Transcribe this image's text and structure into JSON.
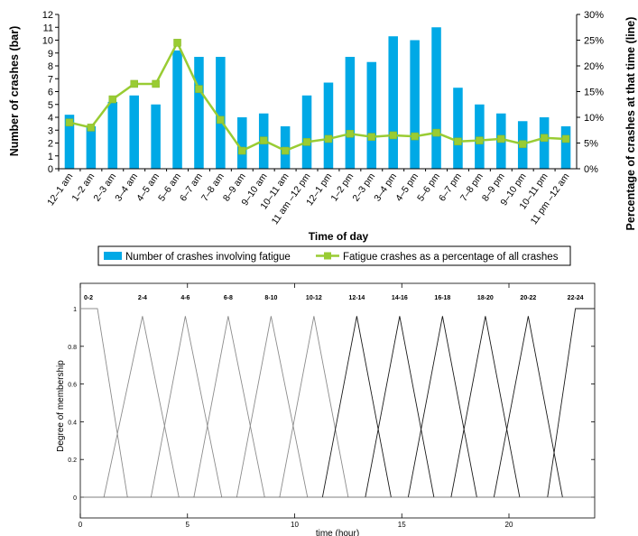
{
  "chart_data": [
    {
      "type": "bar",
      "categories": [
        "12–1 am",
        "1–2 am",
        "2–3 am",
        "3–4 am",
        "4–5 am",
        "5–6 am",
        "6–7 am",
        "7–8 am",
        "8–9 am",
        "9–10 am",
        "10–11 am",
        "11 am –12 pm",
        "12–1 pm",
        "1–2 pm",
        "2–3 pm",
        "3–4 pm",
        "4–5 pm",
        "5–6 pm",
        "6–7 pm",
        "7–8 pm",
        "8–9 pm",
        "9–10 pm",
        "10–11 pm",
        "11 pm –12 am"
      ],
      "series": [
        {
          "name": "Number of crashes involving fatigue",
          "type": "bar",
          "axis": "left",
          "color": "#00a9e6",
          "values": [
            4.2,
            3.3,
            5.2,
            5.7,
            5.0,
            9.2,
            8.7,
            8.7,
            4.0,
            4.3,
            3.3,
            5.7,
            6.7,
            8.7,
            8.3,
            10.3,
            10.0,
            11.0,
            6.3,
            5.0,
            4.3,
            3.7,
            4.0,
            3.3
          ]
        },
        {
          "name": "Fatigue crashes as a percentage of all crashes",
          "type": "line",
          "axis": "right",
          "color": "#99cc33",
          "values": [
            9,
            8,
            13.5,
            16.5,
            16.5,
            24.5,
            15.5,
            9.5,
            3.5,
            5.5,
            3.5,
            5.2,
            5.8,
            6.8,
            6.2,
            6.5,
            6.3,
            7,
            5.3,
            5.5,
            5.8,
            4.8,
            6,
            5.8
          ]
        }
      ],
      "xlabel": "Time of day",
      "ylabel": "Number of crashes (bar)",
      "y2label": "Percentage of crashes at that time (line)",
      "ylim": [
        0,
        12
      ],
      "y2lim": [
        0,
        30
      ],
      "yticks": [
        "0",
        "1",
        "2",
        "3",
        "4",
        "5",
        "6",
        "7",
        "8",
        "9",
        "10",
        "11",
        "12"
      ],
      "y2ticks": [
        "0%",
        "5%",
        "10%",
        "15%",
        "20%",
        "25%",
        "30%"
      ],
      "grid": false,
      "legend_position": "bottom"
    },
    {
      "type": "line",
      "xlabel": "time (hour)",
      "ylabel": "Degree of membership",
      "xlim": [
        0,
        24
      ],
      "ylim": [
        0,
        1
      ],
      "xticks": [
        "0",
        "5",
        "10",
        "15",
        "20"
      ],
      "yticks": [
        "0",
        "0.2",
        "0.4",
        "0.6",
        "0.8",
        "1"
      ],
      "grid": false,
      "sets": [
        {
          "label": "0-2",
          "points": [
            [
              0,
              1
            ],
            [
              0.8,
              1
            ],
            [
              2.2,
              0
            ]
          ]
        },
        {
          "label": "2-4",
          "points": [
            [
              1.1,
              0
            ],
            [
              2.9,
              0.96
            ],
            [
              4.6,
              0
            ]
          ]
        },
        {
          "label": "4-6",
          "points": [
            [
              3.3,
              0
            ],
            [
              4.9,
              0.96
            ],
            [
              6.6,
              0
            ]
          ]
        },
        {
          "label": "6-8",
          "points": [
            [
              5.3,
              0
            ],
            [
              6.9,
              0.96
            ],
            [
              8.6,
              0
            ]
          ]
        },
        {
          "label": "8-10",
          "points": [
            [
              7.3,
              0
            ],
            [
              8.9,
              0.96
            ],
            [
              10.6,
              0
            ]
          ]
        },
        {
          "label": "10-12",
          "points": [
            [
              9.3,
              0
            ],
            [
              10.9,
              0.96
            ],
            [
              12.5,
              0
            ]
          ]
        },
        {
          "label": "12-14",
          "points": [
            [
              11.3,
              0
            ],
            [
              12.9,
              0.96
            ],
            [
              14.5,
              0
            ]
          ]
        },
        {
          "label": "14-16",
          "points": [
            [
              13.3,
              0
            ],
            [
              14.9,
              0.96
            ],
            [
              16.5,
              0
            ]
          ]
        },
        {
          "label": "16-18",
          "points": [
            [
              15.3,
              0
            ],
            [
              16.9,
              0.96
            ],
            [
              18.5,
              0
            ]
          ]
        },
        {
          "label": "18-20",
          "points": [
            [
              17.3,
              0
            ],
            [
              18.9,
              0.96
            ],
            [
              20.5,
              0
            ]
          ]
        },
        {
          "label": "20-22",
          "points": [
            [
              19.3,
              0
            ],
            [
              20.9,
              0.96
            ],
            [
              22.5,
              0
            ]
          ]
        },
        {
          "label": "22-24",
          "points": [
            [
              21.8,
              0
            ],
            [
              23.1,
              1
            ],
            [
              24,
              1
            ]
          ]
        }
      ]
    }
  ]
}
